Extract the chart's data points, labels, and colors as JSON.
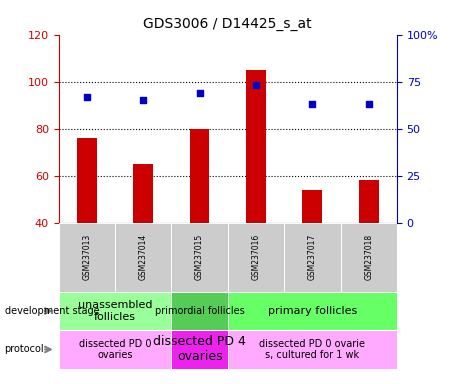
{
  "title": "GDS3006 / D14425_s_at",
  "samples": [
    "GSM237013",
    "GSM237014",
    "GSM237015",
    "GSM237016",
    "GSM237017",
    "GSM237018"
  ],
  "count_values": [
    76,
    65,
    80,
    105,
    54,
    58
  ],
  "percentile_values": [
    67,
    65,
    69,
    73,
    63,
    63
  ],
  "ylim_left": [
    40,
    120
  ],
  "ylim_right": [
    0,
    100
  ],
  "yticks_left": [
    40,
    60,
    80,
    100,
    120
  ],
  "yticks_right": [
    0,
    25,
    50,
    75,
    100
  ],
  "ytick_labels_right": [
    "0",
    "25",
    "50",
    "75",
    "100%"
  ],
  "bar_color": "#cc0000",
  "dot_color": "#0000cc",
  "bar_bottom": 40,
  "development_stage_groups": [
    {
      "label": "unassembled\nfollicles",
      "start": 0,
      "end": 2,
      "color": "#99ff99"
    },
    {
      "label": "primordial follicles",
      "start": 2,
      "end": 3,
      "color": "#55cc55"
    },
    {
      "label": "primary follicles",
      "start": 3,
      "end": 6,
      "color": "#66ff66"
    }
  ],
  "protocol_groups": [
    {
      "label": "dissected PD 0\novaries",
      "start": 0,
      "end": 2,
      "color": "#ffaaff"
    },
    {
      "label": "dissected PD 4\novaries",
      "start": 2,
      "end": 3,
      "color": "#ee22ee"
    },
    {
      "label": "dissected PD 0 ovarie\ns, cultured for 1 wk",
      "start": 3,
      "end": 6,
      "color": "#ffaaff"
    }
  ],
  "left_axis_color": "#cc0000",
  "right_axis_color": "#0000cc",
  "sample_box_color": "#cccccc",
  "fig_width": 4.51,
  "fig_height": 3.84,
  "fig_dpi": 100
}
